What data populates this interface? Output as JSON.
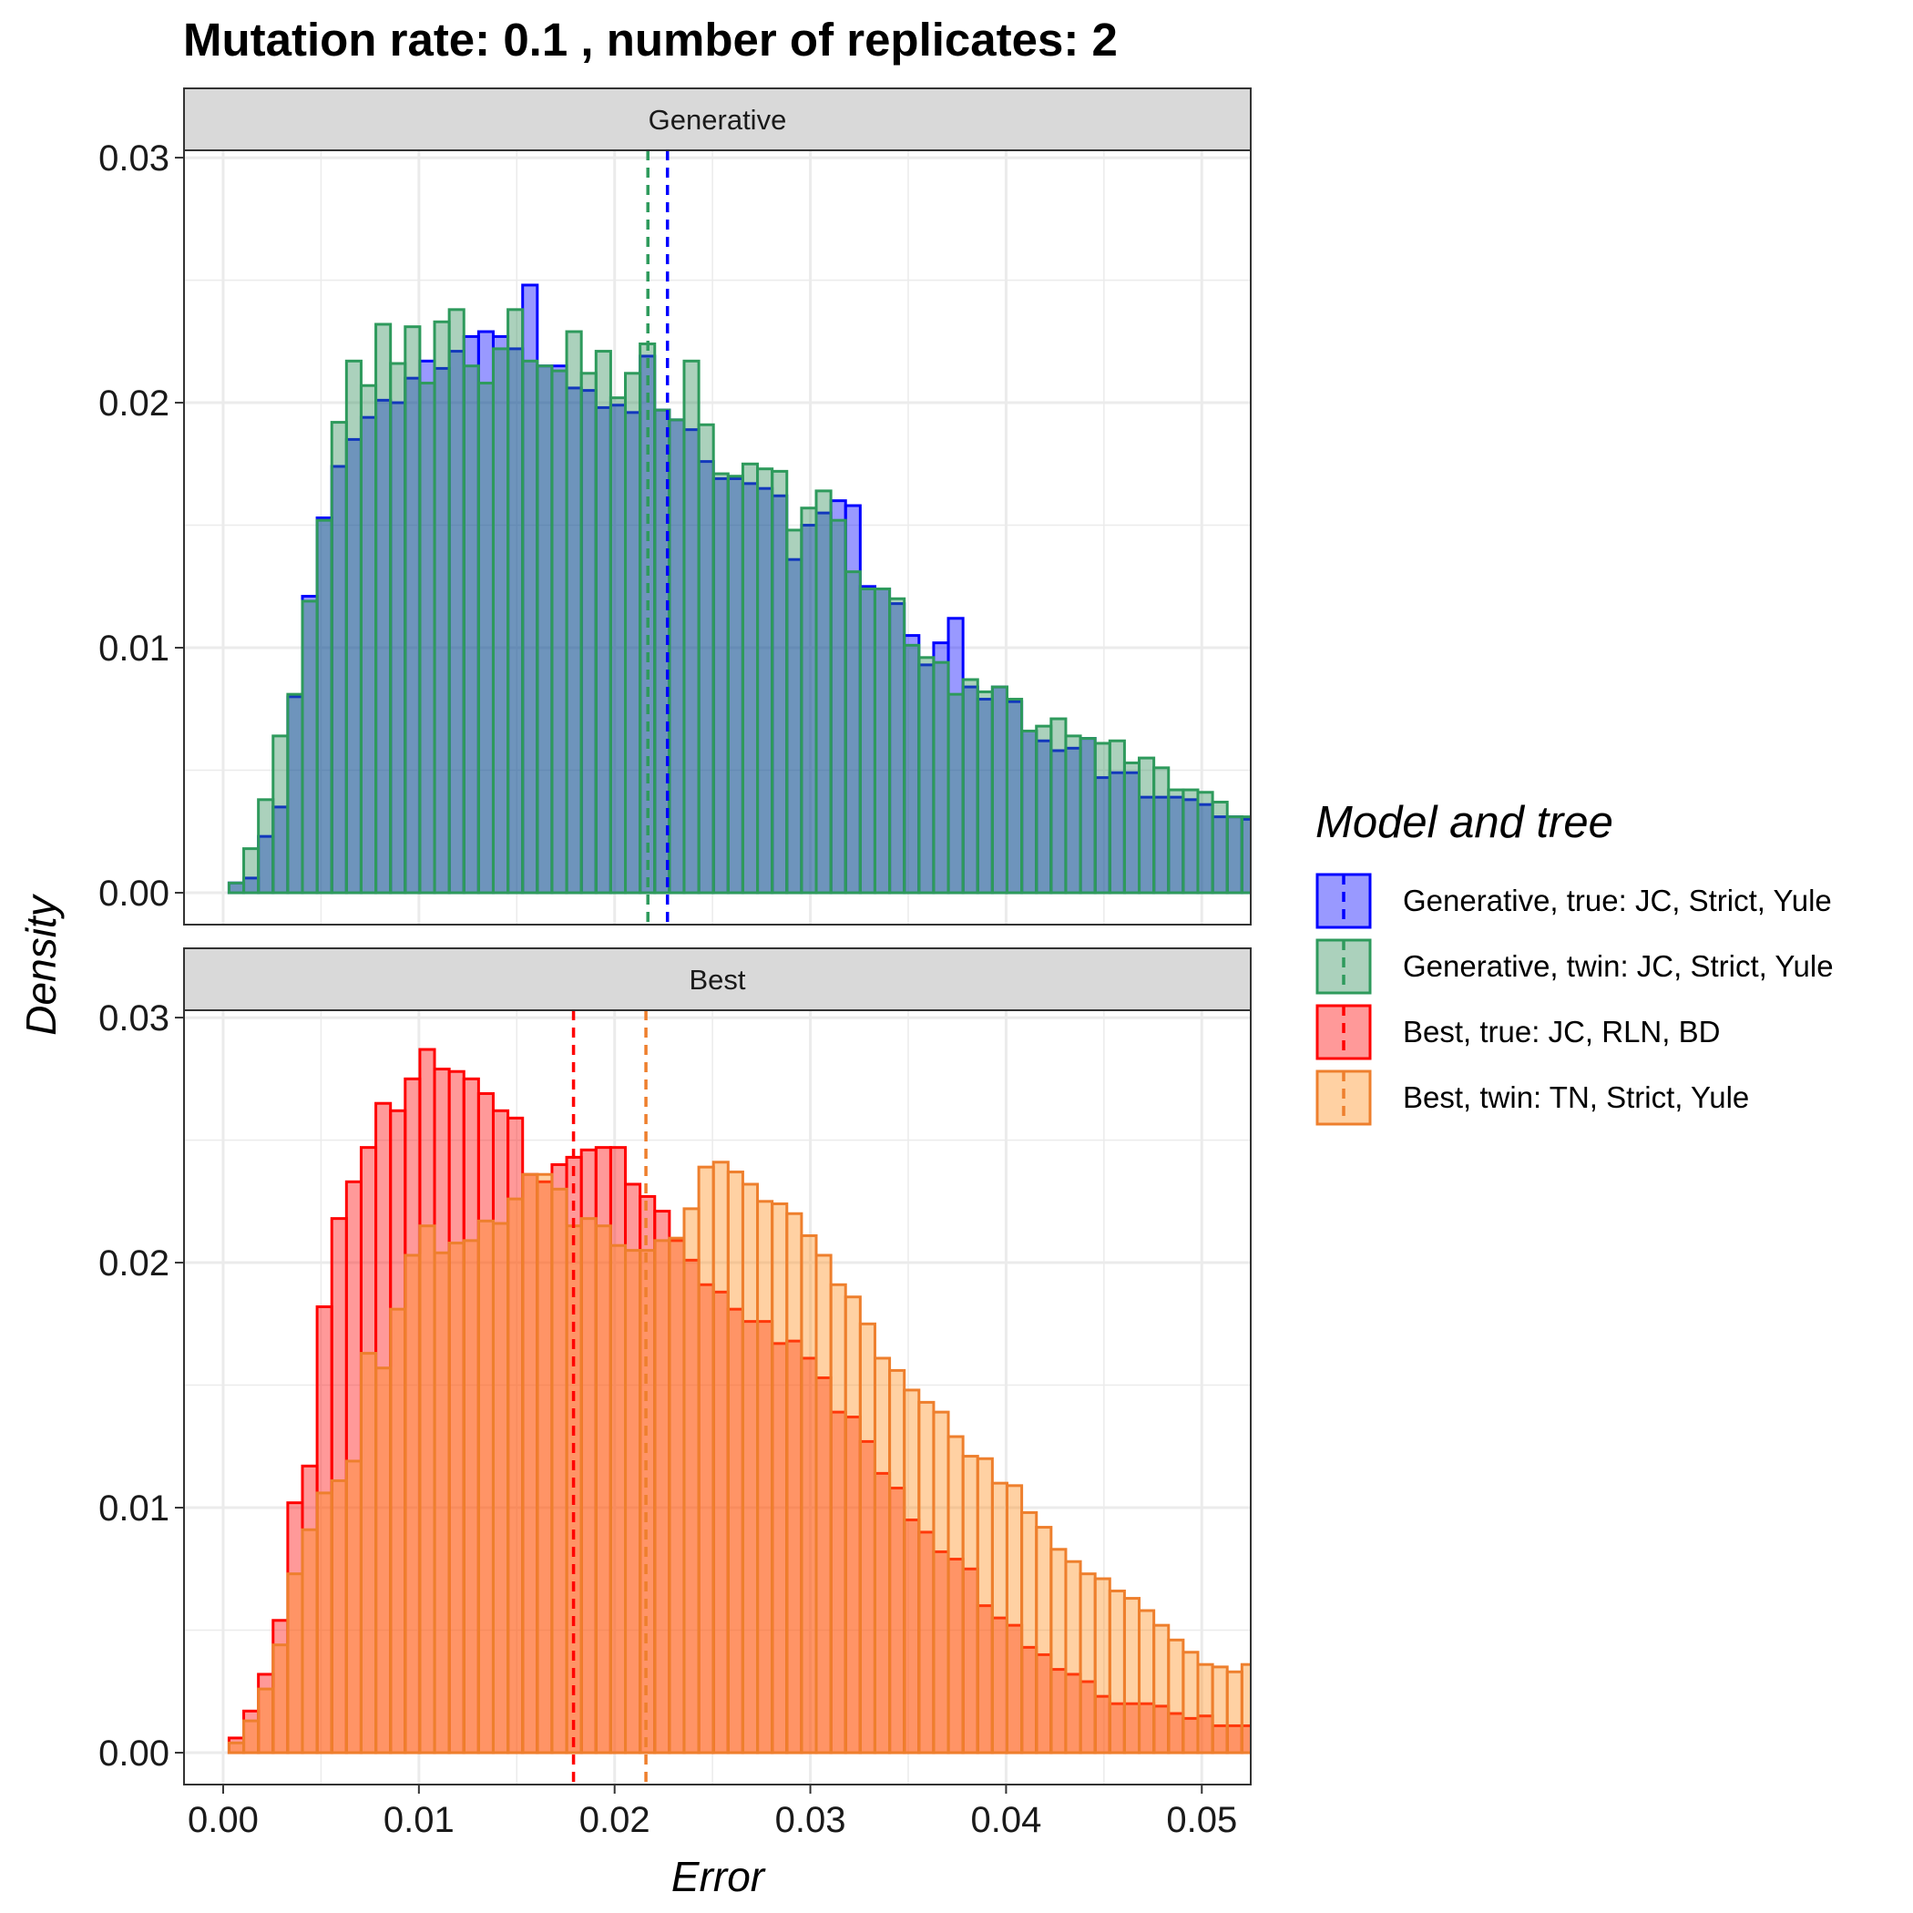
{
  "title": "Mutation rate:  0.1 , number of replicates: 2",
  "chart_data": [
    {
      "type": "histogram",
      "facet": "Generative",
      "xlabel": "Error",
      "ylabel": "Density",
      "xlim": [
        -0.002,
        0.0525
      ],
      "ylim": [
        -0.0013,
        0.0303
      ],
      "x_ticks": [
        "0.00",
        "0.01",
        "0.02",
        "0.03",
        "0.04",
        "0.05"
      ],
      "y_ticks": [
        "0.00",
        "0.01",
        "0.02",
        "0.03"
      ],
      "bin_start": 0.0003,
      "bin_width": 0.00075,
      "series": [
        {
          "name": "Generative, true: JC, Strict, Yule",
          "fill": "#0000ff",
          "stroke": "#0000ff",
          "mean": 0.0227,
          "values": [
            0.0004,
            0.0006,
            0.0023,
            0.0035,
            0.008,
            0.0121,
            0.0153,
            0.0174,
            0.0185,
            0.0194,
            0.0201,
            0.02,
            0.021,
            0.0217,
            0.0214,
            0.0221,
            0.0227,
            0.0229,
            0.0227,
            0.0222,
            0.0248,
            0.0215,
            0.0215,
            0.0206,
            0.0205,
            0.0198,
            0.0199,
            0.0196,
            0.0219,
            0.0197,
            0.0193,
            0.0189,
            0.0176,
            0.0169,
            0.0169,
            0.0167,
            0.0165,
            0.0162,
            0.0136,
            0.015,
            0.0155,
            0.016,
            0.0158,
            0.0125,
            0.0124,
            0.0118,
            0.0105,
            0.0093,
            0.0102,
            0.0112,
            0.0084,
            0.0079,
            0.0084,
            0.0078,
            0.0066,
            0.0062,
            0.0058,
            0.0059,
            0.0063,
            0.0047,
            0.0049,
            0.0049,
            0.0039,
            0.0039,
            0.0039,
            0.0038,
            0.0036,
            0.0031,
            0.0031,
            0.003
          ]
        },
        {
          "name": "Generative, twin: JC, Strict, Yule",
          "fill": "#2e8b57",
          "stroke": "#2e9a5c",
          "mean": 0.0217,
          "values": [
            0.0004,
            0.0018,
            0.0038,
            0.0064,
            0.0081,
            0.0119,
            0.0152,
            0.0192,
            0.0217,
            0.0207,
            0.0232,
            0.0216,
            0.0231,
            0.0208,
            0.0233,
            0.0238,
            0.0215,
            0.0208,
            0.0222,
            0.0238,
            0.0217,
            0.0215,
            0.0213,
            0.0229,
            0.0212,
            0.0221,
            0.0202,
            0.0212,
            0.0224,
            0.0197,
            0.0193,
            0.0217,
            0.0191,
            0.0171,
            0.017,
            0.0175,
            0.0173,
            0.0172,
            0.0148,
            0.0157,
            0.0164,
            0.0152,
            0.0131,
            0.0124,
            0.0124,
            0.012,
            0.0101,
            0.0096,
            0.0094,
            0.0081,
            0.0087,
            0.0082,
            0.0084,
            0.0079,
            0.0066,
            0.0068,
            0.0071,
            0.0064,
            0.0063,
            0.0061,
            0.0062,
            0.0053,
            0.0055,
            0.0051,
            0.0042,
            0.0042,
            0.0041,
            0.0037,
            0.0031,
            0.0031
          ]
        }
      ]
    },
    {
      "type": "histogram",
      "facet": "Best",
      "xlabel": "Error",
      "ylabel": "Density",
      "xlim": [
        -0.002,
        0.0525
      ],
      "ylim": [
        -0.0013,
        0.0303
      ],
      "x_ticks": [
        "0.00",
        "0.01",
        "0.02",
        "0.03",
        "0.04",
        "0.05"
      ],
      "y_ticks": [
        "0.00",
        "0.01",
        "0.02",
        "0.03"
      ],
      "bin_start": 0.0003,
      "bin_width": 0.00075,
      "series": [
        {
          "name": "Best, true: JC, RLN, BD",
          "fill": "#ff0000",
          "stroke": "#ff0000",
          "mean": 0.0179,
          "values": [
            0.0006,
            0.0017,
            0.0032,
            0.0054,
            0.0102,
            0.0117,
            0.0182,
            0.0218,
            0.0233,
            0.0247,
            0.0265,
            0.0262,
            0.0275,
            0.0287,
            0.0279,
            0.0278,
            0.0275,
            0.0269,
            0.0262,
            0.0259,
            0.0236,
            0.0233,
            0.024,
            0.0243,
            0.0246,
            0.0247,
            0.0247,
            0.0232,
            0.0227,
            0.0221,
            0.0209,
            0.0201,
            0.0191,
            0.0188,
            0.0181,
            0.0176,
            0.0176,
            0.0167,
            0.0168,
            0.0161,
            0.0153,
            0.0139,
            0.0137,
            0.0127,
            0.0114,
            0.0108,
            0.0095,
            0.009,
            0.0082,
            0.0079,
            0.0075,
            0.006,
            0.0055,
            0.0052,
            0.0043,
            0.004,
            0.0034,
            0.0032,
            0.0029,
            0.0023,
            0.002,
            0.002,
            0.002,
            0.0019,
            0.0016,
            0.0014,
            0.0015,
            0.0011,
            0.0011,
            0.0011
          ]
        },
        {
          "name": "Best, twin: TN, Strict, Yule",
          "fill": "#ff8c1a",
          "stroke": "#ee7f2d",
          "mean": 0.0216,
          "values": [
            0.0004,
            0.0013,
            0.0026,
            0.0044,
            0.0073,
            0.0091,
            0.0106,
            0.0111,
            0.0119,
            0.0163,
            0.0157,
            0.0181,
            0.0203,
            0.0215,
            0.0204,
            0.0208,
            0.0209,
            0.0217,
            0.0216,
            0.0226,
            0.0236,
            0.0236,
            0.023,
            0.0215,
            0.0218,
            0.0215,
            0.0207,
            0.0205,
            0.0205,
            0.0209,
            0.021,
            0.0222,
            0.0239,
            0.0241,
            0.0237,
            0.0232,
            0.0225,
            0.0224,
            0.022,
            0.0211,
            0.0203,
            0.0191,
            0.0186,
            0.0175,
            0.0161,
            0.0156,
            0.0148,
            0.0143,
            0.0139,
            0.0129,
            0.0121,
            0.012,
            0.011,
            0.0109,
            0.0098,
            0.0092,
            0.0083,
            0.0078,
            0.0073,
            0.0071,
            0.0066,
            0.0063,
            0.0058,
            0.0052,
            0.0046,
            0.0041,
            0.0036,
            0.0035,
            0.0033,
            0.0036
          ]
        }
      ]
    }
  ],
  "legend": {
    "title": "Model and tree",
    "items": [
      {
        "label": "Generative, true: JC, Strict, Yule",
        "fill": "#0000ff",
        "stroke": "#0000ff"
      },
      {
        "label": "Generative, twin: JC, Strict, Yule",
        "fill": "#2e8b57",
        "stroke": "#2e9a5c"
      },
      {
        "label": "Best, true: JC, RLN, BD",
        "fill": "#ff0000",
        "stroke": "#ff0000"
      },
      {
        "label": "Best, twin: TN, Strict, Yule",
        "fill": "#ff8c1a",
        "stroke": "#ee7f2d"
      }
    ]
  }
}
